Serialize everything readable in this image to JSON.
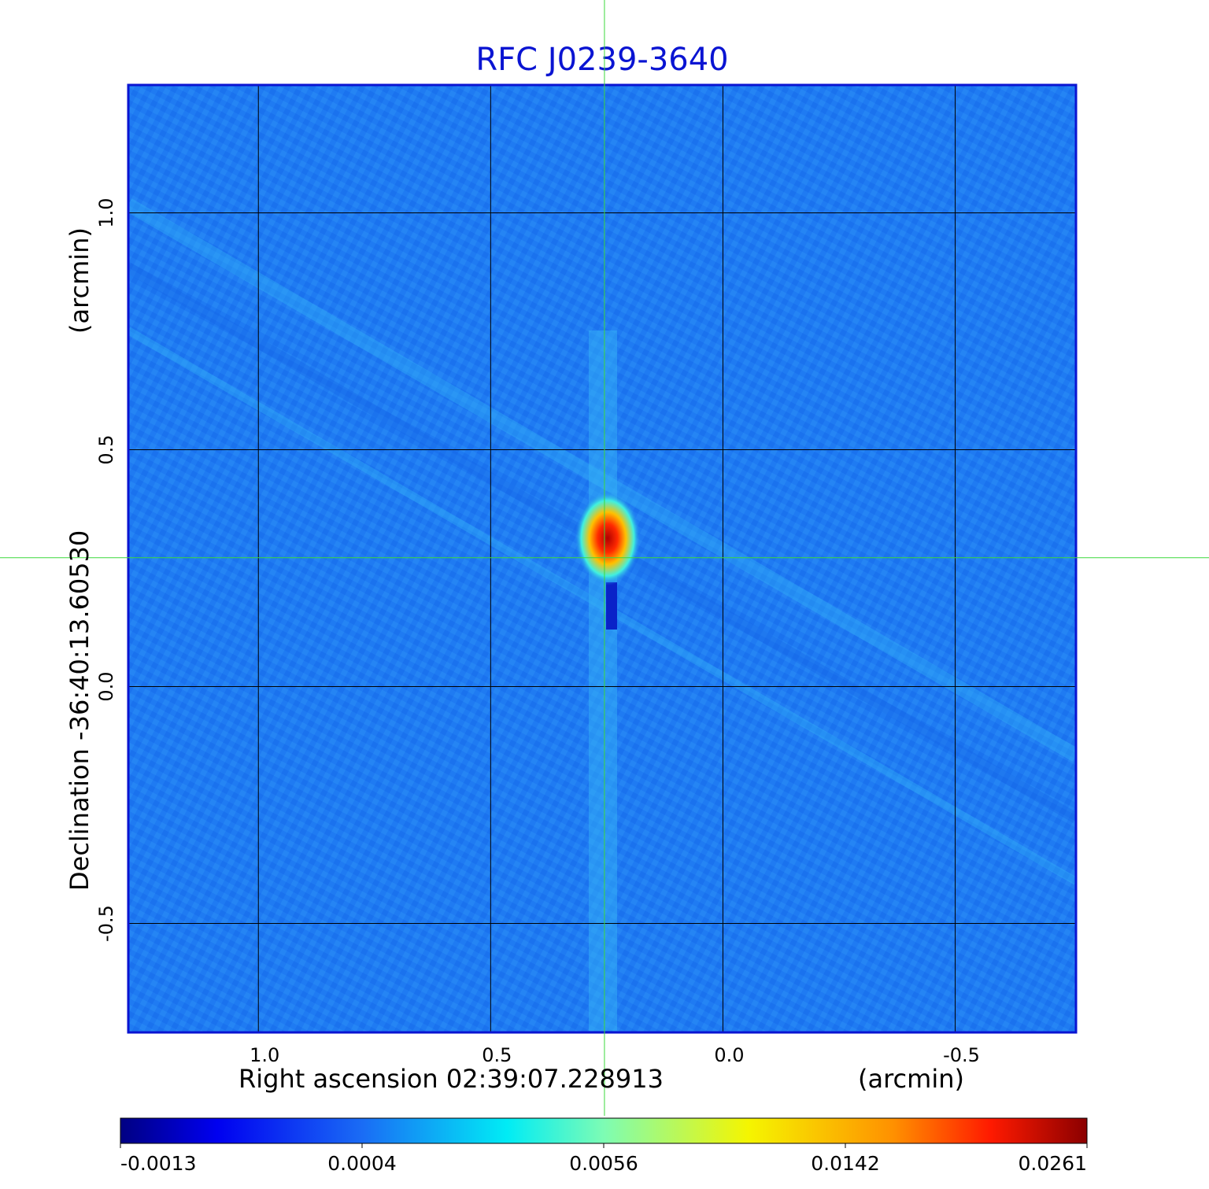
{
  "chart_data": {
    "type": "heatmap",
    "title": "RFC J0239-3640",
    "xlabel": "Right ascension  02:39:07.228913",
    "xunit": "(arcmin)",
    "ylabel": "Declination  -36:40:13.60530",
    "yunit": "(arcmin)",
    "xlim": [
      1.28,
      -0.76
    ],
    "ylim": [
      -0.73,
      1.27
    ],
    "x_ticks": [
      {
        "value": 1.0,
        "label": "1.0"
      },
      {
        "value": 0.5,
        "label": "0.5"
      },
      {
        "value": 0.0,
        "label": "0.0"
      },
      {
        "value": -0.5,
        "label": "-0.5"
      }
    ],
    "y_ticks": [
      {
        "value": 1.0,
        "label": "1.0"
      },
      {
        "value": 0.5,
        "label": "0.5"
      },
      {
        "value": 0.0,
        "label": "0.0"
      },
      {
        "value": -0.5,
        "label": "-0.5"
      }
    ],
    "grid": true,
    "crosshair": {
      "x": 0.255,
      "y": 0.272
    },
    "source_peak": {
      "x": 0.24,
      "y": 0.32,
      "value": 0.0261
    },
    "colormap": "jet",
    "colorbar_ticks": [
      "-0.0013",
      "0.0004",
      "0.0056",
      "0.0142",
      "0.0261"
    ],
    "colorbar_range": [
      -0.0013,
      0.0261
    ]
  },
  "colors": {
    "title": "#0a14d2",
    "frame": "#0a14d2",
    "background_field": "#1f7bf2",
    "crosshair": "#3cd83c",
    "grid": "#000000"
  }
}
